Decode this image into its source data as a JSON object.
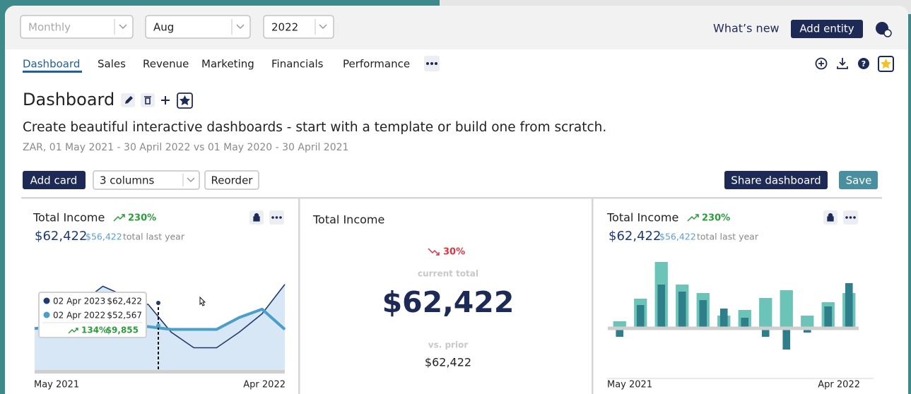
{
  "toolbar": {
    "period": "Monthly",
    "month": "Aug",
    "year": "2022",
    "whats_new": "What’s new",
    "add_entity": "Add entity"
  },
  "tabs": [
    "Dashboard",
    "Sales",
    "Revenue",
    "Marketing",
    "Financials",
    "Performance"
  ],
  "dashboard": {
    "title": "Dashboard",
    "description": "Create beautiful interactive dashboards - start with a template or build one from scratch.",
    "range": "ZAR, 01 May 2021 - 30 April 2022 vs 01 May 2020 - 30 April 2021"
  },
  "actions": {
    "add_card": "Add card",
    "columns": "3 columns",
    "reorder": "Reorder",
    "share": "Share dashboard",
    "save": "Save"
  },
  "cards": [
    {
      "title": "Total Income",
      "change": "230%",
      "total": "$62,422",
      "last_year": "$56,422",
      "last_year_note": "total last year",
      "chart": {
        "type": "line",
        "categories": [
          "May 2021",
          null,
          null,
          null,
          null,
          null,
          null,
          null,
          null,
          null,
          null,
          "Apr 2022"
        ],
        "series": [
          {
            "color": "#1f3a6e",
            "values": [
              46,
              54,
              73,
              92,
              81,
              72,
              42,
              25,
              25,
              42,
              62,
              94
            ]
          },
          {
            "color": "#4a9ec8",
            "values": [
              46,
              48,
              50,
              52,
              50,
              48,
              45,
              45,
              45,
              58,
              67,
              45
            ]
          }
        ],
        "ylim": [
          0,
          100
        ],
        "area_color": "#d8e7f5",
        "tooltip": {
          "rows": [
            {
              "date": "02 Apr 2023",
              "value": "$62,422"
            },
            {
              "date": "02 Apr 2022",
              "value": "$52,567"
            }
          ],
          "change": "134%",
          "difference": "$9,855"
        }
      }
    },
    {
      "title": "Total Income",
      "change": "30%",
      "current_label": "current total",
      "current": "$62,422",
      "prior_label": "vs. prior",
      "prior": "$62,422"
    },
    {
      "title": "Total Income",
      "change": "230%",
      "total": "$62,422",
      "last_year": "$56,422",
      "last_year_note": "total last year",
      "chart": {
        "type": "bar",
        "categories": [
          "May 2021",
          null,
          null,
          null,
          null,
          null,
          null,
          null,
          null,
          null,
          null,
          "Apr 2022"
        ],
        "series": [
          {
            "color": "#6cc3b8",
            "values": [
              10,
              42,
              94,
              62,
              50,
              18,
              26,
              43,
              54,
              18,
              37,
              50
            ]
          },
          {
            "color": "#2e7f8a",
            "values": [
              -12,
              33,
              62,
              52,
              40,
              28,
              15,
              -12,
              -30,
              -6,
              31,
              64
            ]
          }
        ],
        "ylim": [
          -40,
          100
        ]
      }
    }
  ]
}
